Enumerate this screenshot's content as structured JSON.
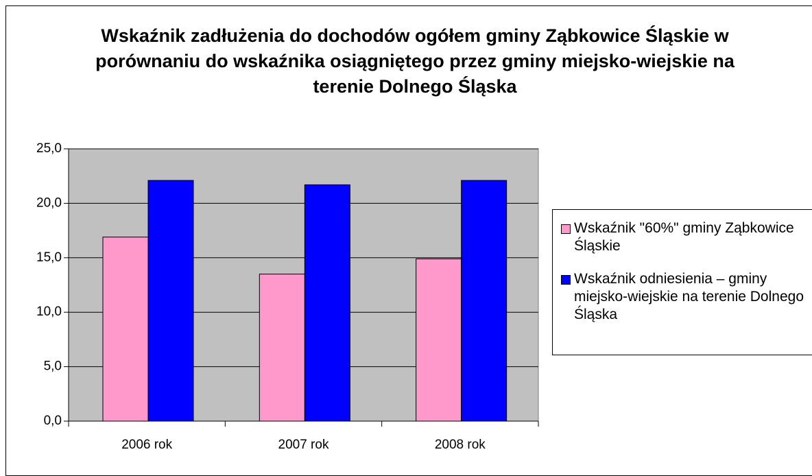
{
  "chart_data": {
    "type": "bar",
    "title": "Wskaźnik zadłużenia do dochodów ogółem gminy Ząbkowice Śląskie w porównaniu do wskaźnika osiągniętego przez gminy miejsko-wiejskie na terenie Dolnego Śląska",
    "categories": [
      "2006 rok",
      "2007 rok",
      "2008 rok"
    ],
    "series": [
      {
        "name": "Wskaźnik \"60%\" gminy Ząbkowice Śląskie",
        "color": "#ff99cc",
        "values": [
          16.9,
          13.5,
          14.9
        ]
      },
      {
        "name": "Wskaźnik odniesienia – gminy miejsko-wiejskie na terenie Dolnego Śląska",
        "color": "#0000ff",
        "values": [
          22.1,
          21.7,
          22.1
        ]
      }
    ],
    "ylim": [
      0,
      25
    ],
    "yticks": [
      {
        "value": 0,
        "label": "0,0"
      },
      {
        "value": 5,
        "label": "5,0"
      },
      {
        "value": 10,
        "label": "10,0"
      },
      {
        "value": 15,
        "label": "15,0"
      },
      {
        "value": 20,
        "label": "20,0"
      },
      {
        "value": 25,
        "label": "25,0"
      }
    ],
    "grid": true,
    "plot_background": "#c0c0c0",
    "legend": "right"
  }
}
